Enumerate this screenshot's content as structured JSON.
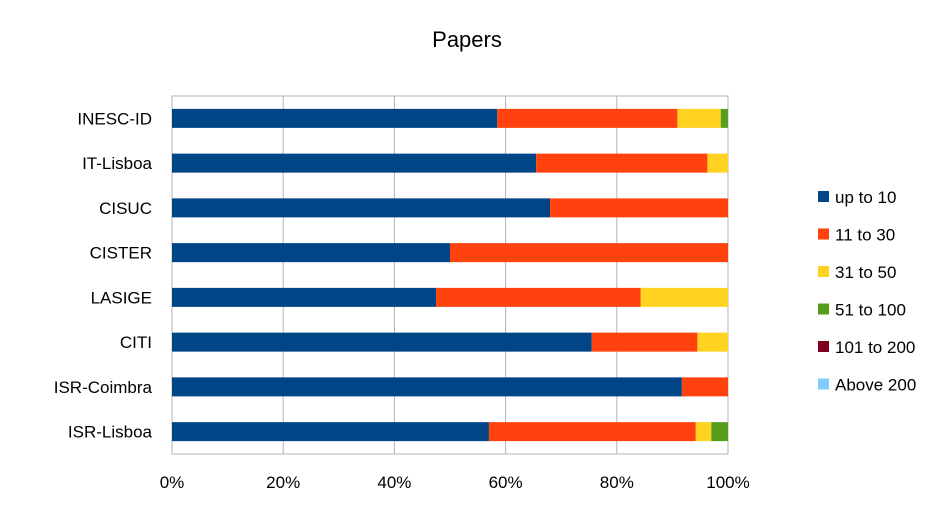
{
  "chart_data": {
    "type": "bar",
    "orientation": "horizontal",
    "stacked": "percent",
    "title": "Papers",
    "categories": [
      "INESC-ID",
      "IT-Lisboa",
      "CISUC",
      "CISTER",
      "LASIGE",
      "CITI",
      "ISR-Coimbra",
      "ISR-Lisboa"
    ],
    "series": [
      {
        "name": "up to 10",
        "color": "#004586",
        "values": [
          58.5,
          65.5,
          68,
          50,
          47.5,
          75.5,
          91.7,
          57
        ]
      },
      {
        "name": "11 to 30",
        "color": "#ff420e",
        "values": [
          32.4,
          30.8,
          32,
          50,
          36.8,
          19,
          8.3,
          37.2
        ]
      },
      {
        "name": "31 to 50",
        "color": "#ffd320",
        "values": [
          7.8,
          3.7,
          0,
          0,
          15.7,
          5.5,
          0,
          2.8
        ]
      },
      {
        "name": "51 to 100",
        "color": "#579d1c",
        "values": [
          1.3,
          0,
          0,
          0,
          0,
          0,
          0,
          3
        ]
      },
      {
        "name": "101 to 200",
        "color": "#7e0021",
        "values": [
          0,
          0,
          0,
          0,
          0,
          0,
          0,
          0
        ]
      },
      {
        "name": "Above 200",
        "color": "#83caff",
        "values": [
          0,
          0,
          0,
          0,
          0,
          0,
          0,
          0
        ]
      }
    ],
    "xlim": [
      0,
      100
    ],
    "xticks": [
      "0%",
      "20%",
      "40%",
      "60%",
      "80%",
      "100%"
    ],
    "grid": true,
    "legend_position": "right"
  }
}
